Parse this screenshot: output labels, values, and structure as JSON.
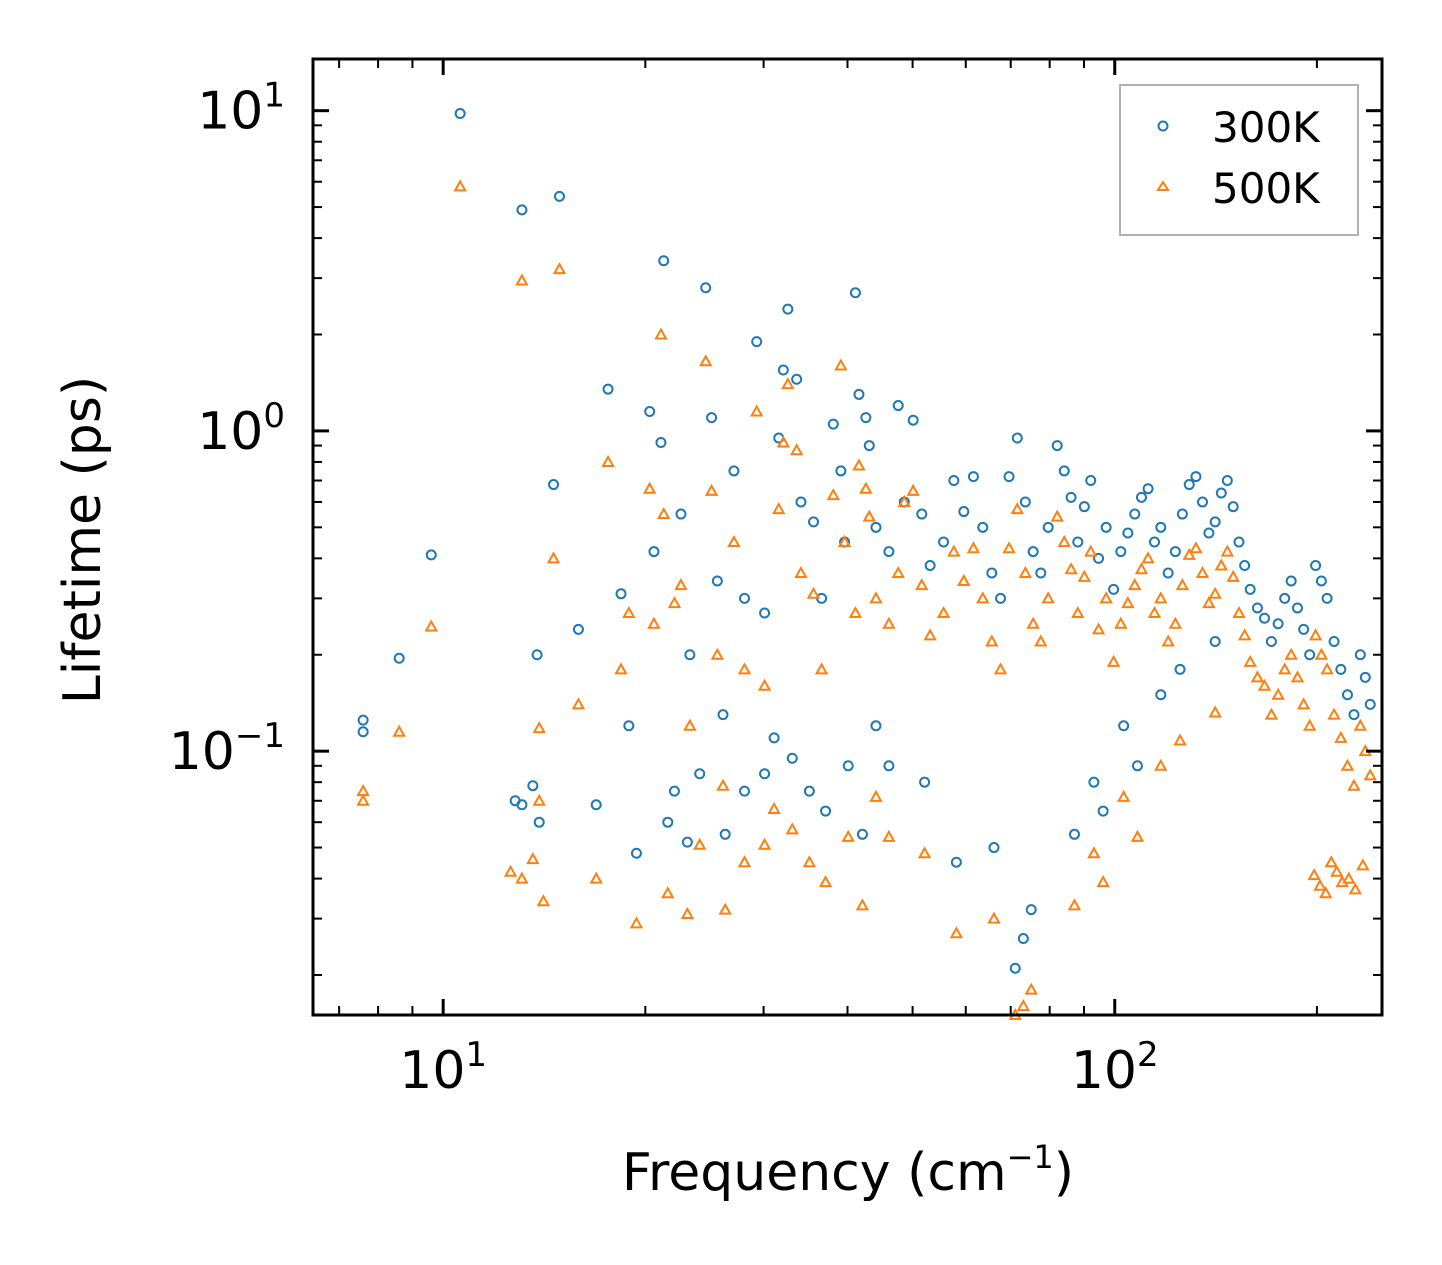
{
  "chart_data": {
    "type": "scatter",
    "x_scale": "log",
    "y_scale": "log",
    "xlim": [
      6.4,
      250
    ],
    "ylim": [
      0.015,
      14.5
    ],
    "xlabel": "Frequency (cm",
    "xlabel_sup": "−1",
    "xlabel_end": ")",
    "ylabel": "Lifetime (ps)",
    "x_ticks": [
      {
        "value": 10,
        "base": "10",
        "exp": "1"
      },
      {
        "value": 100,
        "base": "10",
        "exp": "2"
      }
    ],
    "y_ticks": [
      {
        "value": 0.1,
        "base": "10",
        "exp": "−1"
      },
      {
        "value": 1,
        "base": "10",
        "exp": "0"
      },
      {
        "value": 10,
        "base": "10",
        "exp": "1"
      }
    ],
    "legend_position": "top-right",
    "series": [
      {
        "name": "300K",
        "marker": "circle",
        "color": "#1f77b4",
        "points": [
          [
            7.6,
            0.125
          ],
          [
            7.6,
            0.115
          ],
          [
            8.6,
            0.195
          ],
          [
            9.6,
            0.41
          ],
          [
            10.6,
            9.8
          ],
          [
            12.8,
            0.07
          ],
          [
            13.1,
            4.9
          ],
          [
            13.1,
            0.068
          ],
          [
            13.6,
            0.078
          ],
          [
            13.8,
            0.2
          ],
          [
            13.9,
            0.06
          ],
          [
            14.6,
            0.68
          ],
          [
            14.9,
            5.4
          ],
          [
            15.9,
            0.24
          ],
          [
            16.9,
            0.068
          ],
          [
            17.6,
            1.35
          ],
          [
            18.4,
            0.31
          ],
          [
            18.9,
            0.12
          ],
          [
            19.4,
            0.048
          ],
          [
            20.3,
            1.15
          ],
          [
            20.6,
            0.42
          ],
          [
            21.1,
            0.92
          ],
          [
            21.3,
            3.4
          ],
          [
            21.6,
            0.06
          ],
          [
            22.1,
            0.075
          ],
          [
            22.6,
            0.55
          ],
          [
            23.3,
            0.2
          ],
          [
            24.6,
            2.8
          ],
          [
            25.1,
            1.1
          ],
          [
            25.6,
            0.34
          ],
          [
            26.3,
            0.055
          ],
          [
            27.1,
            0.75
          ],
          [
            28.1,
            0.3
          ],
          [
            29.3,
            1.9
          ],
          [
            30.1,
            0.27
          ],
          [
            31.6,
            0.95
          ],
          [
            32.1,
            1.55
          ],
          [
            32.6,
            2.4
          ],
          [
            33.6,
            1.45
          ],
          [
            34.1,
            0.6
          ],
          [
            35.6,
            0.52
          ],
          [
            36.6,
            0.3
          ],
          [
            38.1,
            1.05
          ],
          [
            39.1,
            0.75
          ],
          [
            39.6,
            0.45
          ],
          [
            41.1,
            2.7
          ],
          [
            41.6,
            1.3
          ],
          [
            42.6,
            1.1
          ],
          [
            43.1,
            0.9
          ],
          [
            44.1,
            0.5
          ],
          [
            46.1,
            0.42
          ],
          [
            47.6,
            1.2
          ],
          [
            48.6,
            0.6
          ],
          [
            50.1,
            1.08
          ],
          [
            51.6,
            0.55
          ],
          [
            53.1,
            0.38
          ],
          [
            55.6,
            0.45
          ],
          [
            57.6,
            0.7
          ],
          [
            59.6,
            0.56
          ],
          [
            61.6,
            0.72
          ],
          [
            63.6,
            0.5
          ],
          [
            65.6,
            0.36
          ],
          [
            67.6,
            0.3
          ],
          [
            69.6,
            0.72
          ],
          [
            71.6,
            0.95
          ],
          [
            73.6,
            0.6
          ],
          [
            75.6,
            0.42
          ],
          [
            77.6,
            0.36
          ],
          [
            79.6,
            0.5
          ],
          [
            82.1,
            0.9
          ],
          [
            84.1,
            0.75
          ],
          [
            86.1,
            0.62
          ],
          [
            88.1,
            0.45
          ],
          [
            90.1,
            0.58
          ],
          [
            92.1,
            0.7
          ],
          [
            94.6,
            0.4
          ],
          [
            97.1,
            0.5
          ],
          [
            99.6,
            0.32
          ],
          [
            102.1,
            0.42
          ],
          [
            104.6,
            0.48
          ],
          [
            107.1,
            0.55
          ],
          [
            109.6,
            0.62
          ],
          [
            112.1,
            0.66
          ],
          [
            114.6,
            0.45
          ],
          [
            117.1,
            0.5
          ],
          [
            120.1,
            0.36
          ],
          [
            123.1,
            0.42
          ],
          [
            126.1,
            0.55
          ],
          [
            129.1,
            0.68
          ],
          [
            132.1,
            0.72
          ],
          [
            135.1,
            0.6
          ],
          [
            138.1,
            0.48
          ],
          [
            141.1,
            0.52
          ],
          [
            144.1,
            0.64
          ],
          [
            147.1,
            0.7
          ],
          [
            150.1,
            0.58
          ],
          [
            153.1,
            0.45
          ],
          [
            156.1,
            0.38
          ],
          [
            159.1,
            0.32
          ],
          [
            163.1,
            0.28
          ],
          [
            167.1,
            0.26
          ],
          [
            171.1,
            0.22
          ],
          [
            175.1,
            0.25
          ],
          [
            179.1,
            0.3
          ],
          [
            183.1,
            0.34
          ],
          [
            187.1,
            0.28
          ],
          [
            191.1,
            0.24
          ],
          [
            195.1,
            0.2
          ],
          [
            199.1,
            0.38
          ],
          [
            203.1,
            0.34
          ],
          [
            207.1,
            0.3
          ],
          [
            212.1,
            0.22
          ],
          [
            217.1,
            0.18
          ],
          [
            222.1,
            0.15
          ],
          [
            227.1,
            0.13
          ],
          [
            232.1,
            0.2
          ],
          [
            236.1,
            0.17
          ],
          [
            240.1,
            0.14
          ],
          [
            75.1,
            0.032
          ],
          [
            73.1,
            0.026
          ],
          [
            71.1,
            0.021
          ],
          [
            66.1,
            0.05
          ],
          [
            58.1,
            0.045
          ],
          [
            52.1,
            0.08
          ],
          [
            46.1,
            0.09
          ],
          [
            44.1,
            0.12
          ],
          [
            42.1,
            0.055
          ],
          [
            40.1,
            0.09
          ],
          [
            37.1,
            0.065
          ],
          [
            35.1,
            0.075
          ],
          [
            33.1,
            0.095
          ],
          [
            31.1,
            0.11
          ],
          [
            30.1,
            0.085
          ],
          [
            28.1,
            0.075
          ],
          [
            26.1,
            0.13
          ],
          [
            24.1,
            0.085
          ],
          [
            23.1,
            0.052
          ],
          [
            87.1,
            0.055
          ],
          [
            93.1,
            0.08
          ],
          [
            96.1,
            0.065
          ],
          [
            103.1,
            0.12
          ],
          [
            108.1,
            0.09
          ],
          [
            117.1,
            0.15
          ],
          [
            125.1,
            0.18
          ],
          [
            141.1,
            0.22
          ]
        ]
      },
      {
        "name": "500K",
        "marker": "triangle",
        "color": "#ff7f0e",
        "points": [
          [
            7.6,
            0.075
          ],
          [
            7.6,
            0.07
          ],
          [
            8.6,
            0.115
          ],
          [
            9.6,
            0.245
          ],
          [
            10.6,
            5.8
          ],
          [
            12.6,
            0.042
          ],
          [
            13.1,
            2.95
          ],
          [
            13.1,
            0.04
          ],
          [
            13.6,
            0.046
          ],
          [
            13.9,
            0.118
          ],
          [
            13.9,
            0.07
          ],
          [
            14.1,
            0.034
          ],
          [
            14.6,
            0.4
          ],
          [
            14.9,
            3.2
          ],
          [
            15.9,
            0.14
          ],
          [
            16.9,
            0.04
          ],
          [
            17.6,
            0.8
          ],
          [
            18.4,
            0.18
          ],
          [
            18.9,
            0.27
          ],
          [
            19.4,
            0.029
          ],
          [
            20.3,
            0.66
          ],
          [
            20.6,
            0.25
          ],
          [
            21.1,
            2.0
          ],
          [
            21.3,
            0.55
          ],
          [
            21.6,
            0.036
          ],
          [
            22.1,
            0.29
          ],
          [
            22.6,
            0.33
          ],
          [
            23.3,
            0.12
          ],
          [
            24.6,
            1.65
          ],
          [
            25.1,
            0.65
          ],
          [
            25.6,
            0.2
          ],
          [
            26.3,
            0.032
          ],
          [
            27.1,
            0.45
          ],
          [
            28.1,
            0.18
          ],
          [
            29.3,
            1.15
          ],
          [
            30.1,
            0.16
          ],
          [
            31.6,
            0.57
          ],
          [
            32.1,
            0.92
          ],
          [
            32.6,
            1.4
          ],
          [
            33.6,
            0.87
          ],
          [
            34.1,
            0.36
          ],
          [
            35.6,
            0.31
          ],
          [
            36.6,
            0.18
          ],
          [
            38.1,
            0.63
          ],
          [
            39.1,
            1.6
          ],
          [
            39.6,
            0.45
          ],
          [
            41.1,
            0.27
          ],
          [
            41.6,
            0.78
          ],
          [
            42.6,
            0.66
          ],
          [
            43.1,
            0.54
          ],
          [
            44.1,
            0.3
          ],
          [
            46.1,
            0.25
          ],
          [
            47.6,
            0.36
          ],
          [
            48.6,
            0.6
          ],
          [
            50.1,
            0.65
          ],
          [
            51.6,
            0.33
          ],
          [
            53.1,
            0.23
          ],
          [
            55.6,
            0.27
          ],
          [
            57.6,
            0.42
          ],
          [
            59.6,
            0.34
          ],
          [
            61.6,
            0.43
          ],
          [
            63.6,
            0.3
          ],
          [
            65.6,
            0.22
          ],
          [
            67.6,
            0.18
          ],
          [
            69.6,
            0.43
          ],
          [
            71.6,
            0.57
          ],
          [
            73.6,
            0.36
          ],
          [
            75.6,
            0.25
          ],
          [
            77.6,
            0.22
          ],
          [
            79.6,
            0.3
          ],
          [
            82.1,
            0.54
          ],
          [
            84.1,
            0.45
          ],
          [
            86.1,
            0.37
          ],
          [
            88.1,
            0.27
          ],
          [
            90.1,
            0.35
          ],
          [
            92.1,
            0.42
          ],
          [
            94.6,
            0.24
          ],
          [
            97.1,
            0.3
          ],
          [
            99.6,
            0.19
          ],
          [
            102.1,
            0.25
          ],
          [
            104.6,
            0.29
          ],
          [
            107.1,
            0.33
          ],
          [
            109.6,
            0.37
          ],
          [
            112.1,
            0.4
          ],
          [
            114.6,
            0.27
          ],
          [
            117.1,
            0.3
          ],
          [
            120.1,
            0.22
          ],
          [
            123.1,
            0.25
          ],
          [
            126.1,
            0.33
          ],
          [
            129.1,
            0.41
          ],
          [
            132.1,
            0.43
          ],
          [
            135.1,
            0.36
          ],
          [
            138.1,
            0.29
          ],
          [
            141.1,
            0.31
          ],
          [
            144.1,
            0.38
          ],
          [
            147.1,
            0.42
          ],
          [
            150.1,
            0.35
          ],
          [
            153.1,
            0.27
          ],
          [
            156.1,
            0.23
          ],
          [
            159.1,
            0.19
          ],
          [
            163.1,
            0.17
          ],
          [
            167.1,
            0.16
          ],
          [
            171.1,
            0.13
          ],
          [
            175.1,
            0.15
          ],
          [
            179.1,
            0.18
          ],
          [
            183.1,
            0.2
          ],
          [
            187.1,
            0.17
          ],
          [
            191.1,
            0.14
          ],
          [
            195.1,
            0.12
          ],
          [
            199.1,
            0.23
          ],
          [
            203.1,
            0.2
          ],
          [
            207.1,
            0.18
          ],
          [
            212.1,
            0.13
          ],
          [
            217.1,
            0.11
          ],
          [
            222.1,
            0.09
          ],
          [
            227.1,
            0.078
          ],
          [
            232.1,
            0.12
          ],
          [
            236.1,
            0.1
          ],
          [
            240.1,
            0.084
          ],
          [
            75.1,
            0.018
          ],
          [
            73.1,
            0.016
          ],
          [
            71.1,
            0.015
          ],
          [
            66.1,
            0.03
          ],
          [
            58.1,
            0.027
          ],
          [
            52.1,
            0.048
          ],
          [
            46.1,
            0.054
          ],
          [
            44.1,
            0.072
          ],
          [
            42.1,
            0.033
          ],
          [
            40.1,
            0.054
          ],
          [
            37.1,
            0.039
          ],
          [
            35.1,
            0.045
          ],
          [
            33.1,
            0.057
          ],
          [
            31.1,
            0.066
          ],
          [
            30.1,
            0.051
          ],
          [
            28.1,
            0.045
          ],
          [
            26.1,
            0.078
          ],
          [
            24.1,
            0.051
          ],
          [
            23.1,
            0.031
          ],
          [
            87.1,
            0.033
          ],
          [
            93.1,
            0.048
          ],
          [
            96.1,
            0.039
          ],
          [
            103.1,
            0.072
          ],
          [
            108.1,
            0.054
          ],
          [
            117.1,
            0.09
          ],
          [
            125.1,
            0.108
          ],
          [
            141.1,
            0.132
          ],
          [
            198.1,
            0.041
          ],
          [
            202.1,
            0.038
          ],
          [
            206.1,
            0.036
          ],
          [
            210.1,
            0.045
          ],
          [
            214.1,
            0.042
          ],
          [
            218.1,
            0.039
          ],
          [
            223.1,
            0.04
          ],
          [
            228.1,
            0.037
          ],
          [
            234.1,
            0.044
          ]
        ]
      }
    ]
  }
}
